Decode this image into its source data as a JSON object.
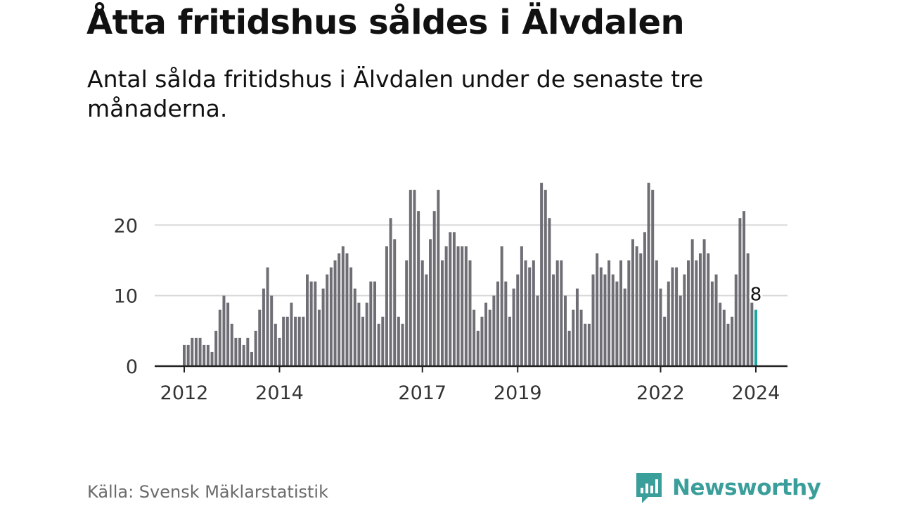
{
  "title": "Åtta fritidshus såldes i Älvdalen",
  "subtitle": "Antal sålda fritidshus i Älvdalen under de senaste tre månaderna.",
  "source": "Källa: Svensk Mäklarstatistik",
  "brand": {
    "name": "Newsworthy",
    "icon": "newsworthy-chart-bubble-icon",
    "color": "#3a9e9b"
  },
  "colors": {
    "bar": "#6e6e75",
    "highlight": "#1fa5a1",
    "grid": "#d9d9d9",
    "axis": "#222222"
  },
  "chart_data": {
    "type": "bar",
    "title": "Åtta fritidshus såldes i Älvdalen",
    "xlabel": "",
    "ylabel": "",
    "ylim": [
      0,
      27
    ],
    "yticks": [
      0,
      10,
      20
    ],
    "grid": true,
    "xticks": [
      {
        "label": "2012",
        "index": 0
      },
      {
        "label": "2014",
        "index": 24
      },
      {
        "label": "2017",
        "index": 60
      },
      {
        "label": "2019",
        "index": 84
      },
      {
        "label": "2022",
        "index": 120
      },
      {
        "label": "2024",
        "index": 144
      }
    ],
    "highlight": {
      "index": 144,
      "value": 8,
      "label": "8"
    },
    "values": [
      3,
      3,
      4,
      4,
      4,
      3,
      3,
      2,
      5,
      8,
      10,
      9,
      6,
      4,
      4,
      3,
      4,
      2,
      5,
      8,
      11,
      14,
      10,
      6,
      4,
      7,
      7,
      9,
      7,
      7,
      7,
      13,
      12,
      12,
      8,
      11,
      13,
      14,
      15,
      16,
      17,
      16,
      14,
      11,
      9,
      7,
      9,
      12,
      12,
      6,
      7,
      17,
      21,
      18,
      7,
      6,
      15,
      25,
      25,
      22,
      15,
      13,
      18,
      22,
      25,
      15,
      17,
      19,
      19,
      17,
      17,
      17,
      15,
      8,
      5,
      7,
      9,
      8,
      10,
      12,
      17,
      12,
      7,
      11,
      13,
      17,
      15,
      14,
      15,
      10,
      26,
      25,
      21,
      13,
      15,
      15,
      10,
      5,
      8,
      11,
      8,
      6,
      6,
      13,
      16,
      14,
      13,
      15,
      13,
      12,
      15,
      11,
      15,
      18,
      17,
      16,
      19,
      26,
      25,
      15,
      11,
      7,
      12,
      14,
      14,
      10,
      13,
      15,
      18,
      15,
      16,
      18,
      16,
      12,
      13,
      9,
      8,
      6,
      7,
      13,
      21,
      22,
      16,
      9,
      8
    ]
  }
}
